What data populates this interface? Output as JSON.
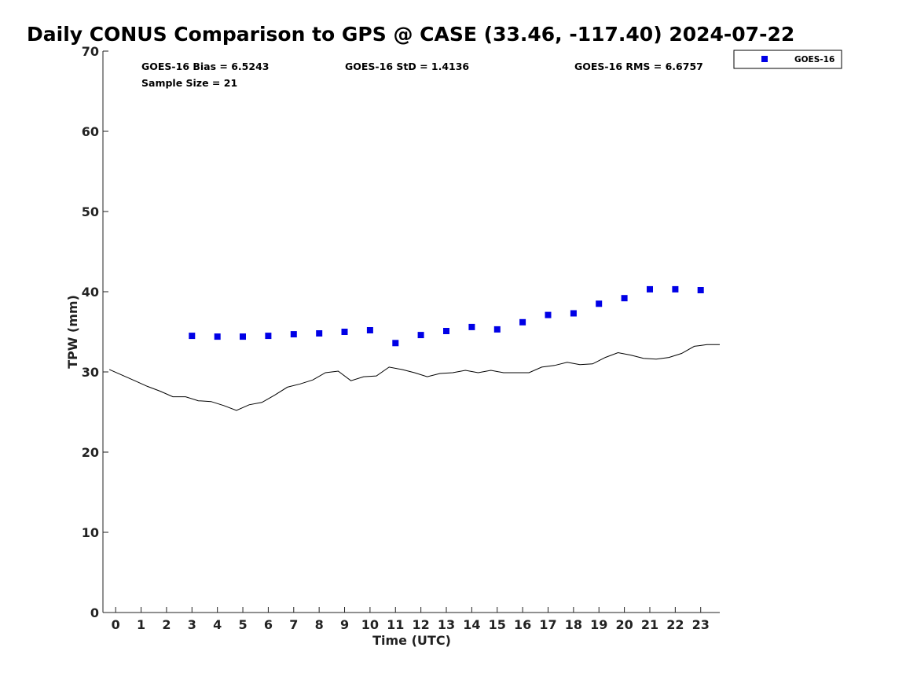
{
  "chart_data": {
    "type": "scatter",
    "title": "Daily CONUS Comparison to GPS @ CASE (33.46, -117.40) 2024-07-22",
    "xlabel": "Time (UTC)",
    "ylabel": "TPW (mm)",
    "xlim": [
      -0.5,
      23.75
    ],
    "ylim": [
      0,
      70
    ],
    "x_ticks": [
      "0",
      "1",
      "2",
      "3",
      "4",
      "5",
      "6",
      "7",
      "8",
      "9",
      "10",
      "11",
      "12",
      "13",
      "14",
      "15",
      "16",
      "17",
      "18",
      "19",
      "20",
      "21",
      "22",
      "23"
    ],
    "y_ticks": [
      "0",
      "10",
      "20",
      "30",
      "40",
      "50",
      "60",
      "70"
    ],
    "grid": false,
    "legend_position": "top-right",
    "stats": {
      "bias": "GOES-16 Bias = 6.5243",
      "std": "GOES-16 StD = 1.4136",
      "rms": "GOES-16 RMS = 6.6757",
      "sample": "Sample Size = 21"
    },
    "series": [
      {
        "name": "GOES-16",
        "kind": "scatter",
        "color": "#0000e6",
        "marker": "square",
        "x": [
          3,
          4,
          5,
          6,
          7,
          8,
          9,
          10,
          11,
          12,
          13,
          14,
          15,
          16,
          17,
          18,
          19,
          20,
          21,
          22,
          23
        ],
        "y": [
          34.5,
          34.4,
          34.4,
          34.5,
          34.7,
          34.8,
          35.0,
          35.2,
          33.6,
          34.6,
          35.1,
          35.6,
          35.3,
          36.2,
          37.1,
          37.3,
          38.5,
          39.2,
          40.3,
          40.3,
          40.2
        ]
      },
      {
        "kind": "line",
        "color": "#000000",
        "x": [
          -0.25,
          0.25,
          0.75,
          1.25,
          1.75,
          2.25,
          2.75,
          3.25,
          3.75,
          4.25,
          4.75,
          5.25,
          5.75,
          6.25,
          6.75,
          7.25,
          7.75,
          8.25,
          8.75,
          9.25,
          9.75,
          10.25,
          10.75,
          11.25,
          11.75,
          12.25,
          12.75,
          13.25,
          13.75,
          14.25,
          14.75,
          15.25,
          15.75,
          16.25,
          16.75,
          17.25,
          17.75,
          18.25,
          18.75,
          19.25,
          19.75,
          20.25,
          20.75,
          21.25,
          21.75,
          22.25,
          22.75,
          23.25,
          23.75
        ],
        "y": [
          30.3,
          29.6,
          28.9,
          28.2,
          27.6,
          26.9,
          26.9,
          26.4,
          26.3,
          25.8,
          25.2,
          25.9,
          26.2,
          27.1,
          28.1,
          28.5,
          29.0,
          29.9,
          30.1,
          28.9,
          29.4,
          29.5,
          30.6,
          30.3,
          29.9,
          29.4,
          29.8,
          29.9,
          30.2,
          29.9,
          30.2,
          29.9,
          29.9,
          29.9,
          30.6,
          30.8,
          31.2,
          30.9,
          31.0,
          31.8,
          32.4,
          32.1,
          31.7,
          31.6,
          31.8,
          32.3,
          33.2,
          33.4,
          33.4
        ]
      }
    ]
  }
}
